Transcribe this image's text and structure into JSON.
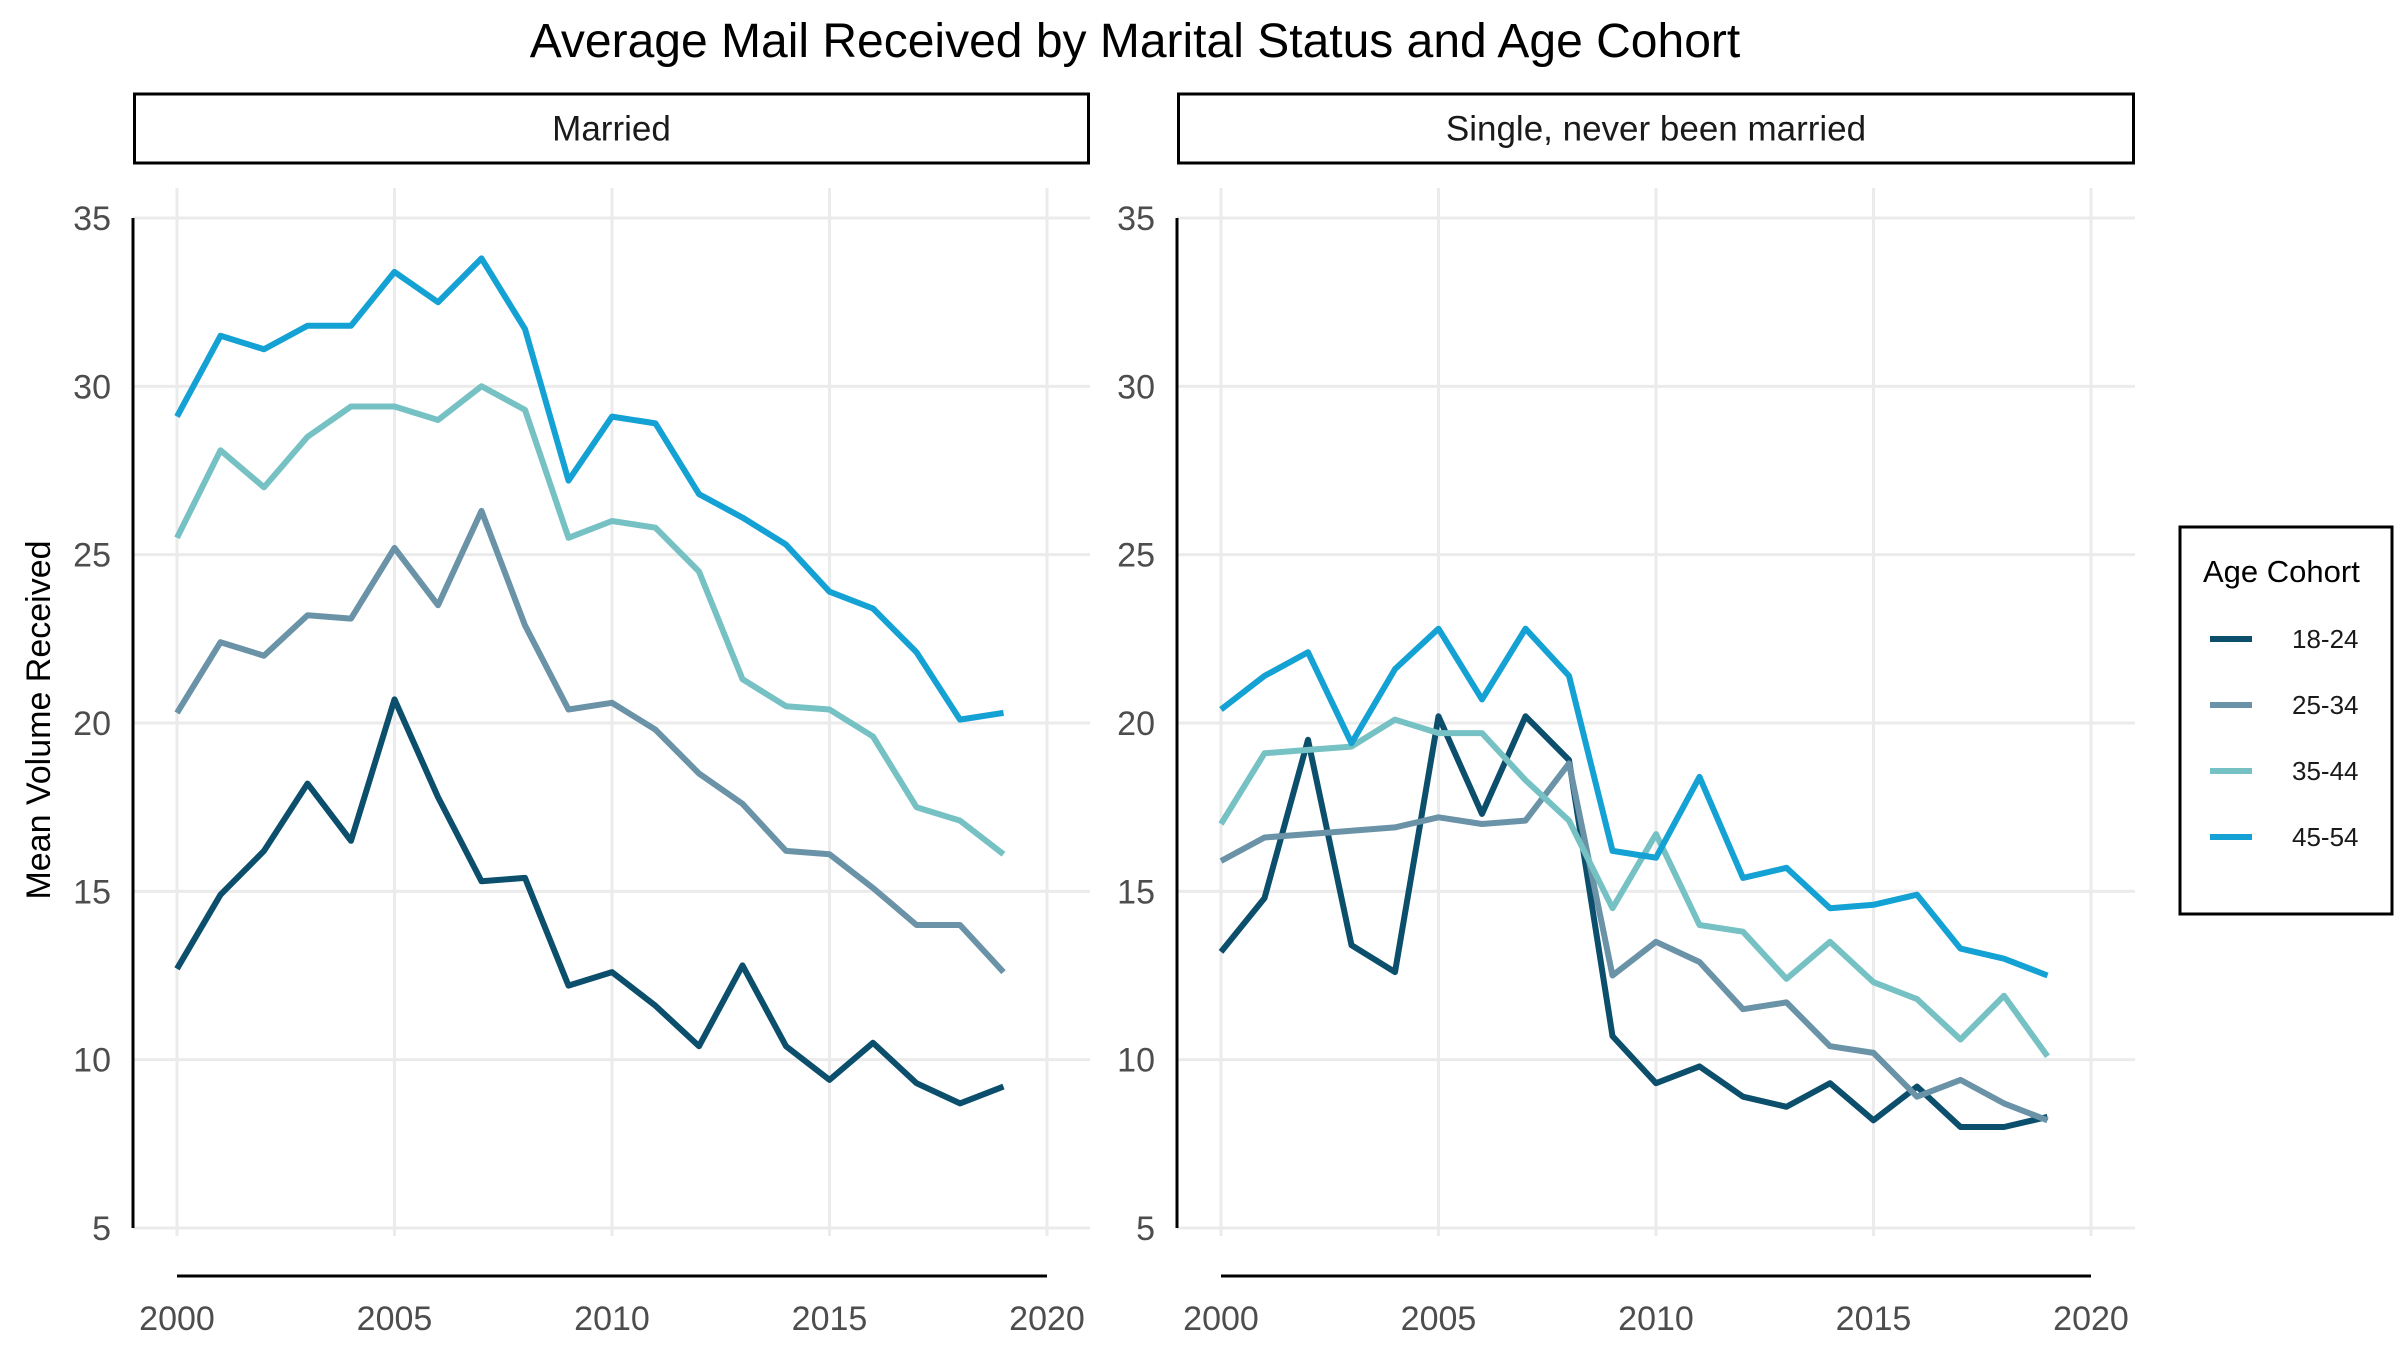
{
  "chart_data": {
    "type": "line",
    "title": "Average Mail Received by Marital Status and Age Cohort",
    "ylabel": "Mean Volume Received",
    "xlabel": "",
    "xlim": [
      2000,
      2020
    ],
    "ylim": [
      5,
      35
    ],
    "xticks": [
      2000,
      2005,
      2010,
      2015,
      2020
    ],
    "yticks": [
      5,
      10,
      15,
      20,
      25,
      30,
      35
    ],
    "x": [
      2000,
      2001,
      2002,
      2003,
      2004,
      2005,
      2006,
      2007,
      2008,
      2009,
      2010,
      2011,
      2012,
      2013,
      2014,
      2015,
      2016,
      2017,
      2018,
      2019
    ],
    "grid": true,
    "legend": {
      "title": "Age Cohort",
      "position": "right",
      "entries": [
        {
          "label": "18-24",
          "color": "#0b4f6c"
        },
        {
          "label": "25-34",
          "color": "#6a93a8"
        },
        {
          "label": "35-44",
          "color": "#76c1c4"
        },
        {
          "label": "45-54",
          "color": "#14a1d3"
        }
      ]
    },
    "panels": [
      {
        "label": "Married",
        "series": [
          {
            "name": "18-24",
            "color": "#0b4f6c",
            "values": [
              12.7,
              14.9,
              16.2,
              18.2,
              16.5,
              20.7,
              17.8,
              15.3,
              15.4,
              12.2,
              12.6,
              11.6,
              10.4,
              12.8,
              10.4,
              9.4,
              10.5,
              9.3,
              8.7,
              9.2
            ]
          },
          {
            "name": "25-34",
            "color": "#6a93a8",
            "values": [
              20.3,
              22.4,
              22.0,
              23.2,
              23.1,
              25.2,
              23.5,
              26.3,
              22.9,
              20.4,
              20.6,
              19.8,
              18.5,
              17.6,
              16.2,
              16.1,
              15.1,
              14.0,
              14.0,
              12.6
            ]
          },
          {
            "name": "35-44",
            "color": "#76c1c4",
            "values": [
              25.5,
              28.1,
              27.0,
              28.5,
              29.4,
              29.4,
              29.0,
              30.0,
              29.3,
              25.5,
              26.0,
              25.8,
              24.5,
              21.3,
              20.5,
              20.4,
              19.6,
              17.5,
              17.1,
              16.1
            ]
          },
          {
            "name": "45-54",
            "color": "#14a1d3",
            "values": [
              29.1,
              31.5,
              31.1,
              31.8,
              31.8,
              33.4,
              32.5,
              33.8,
              31.7,
              27.2,
              29.1,
              28.9,
              26.8,
              26.1,
              25.3,
              23.9,
              23.4,
              22.1,
              20.1,
              20.3
            ]
          }
        ]
      },
      {
        "label": "Single, never been married",
        "series": [
          {
            "name": "18-24",
            "color": "#0b4f6c",
            "values": [
              13.2,
              14.8,
              19.5,
              13.4,
              12.6,
              20.2,
              17.3,
              20.2,
              18.9,
              10.7,
              9.3,
              9.8,
              8.9,
              8.6,
              9.3,
              8.2,
              9.2,
              8.0,
              8.0,
              8.3
            ]
          },
          {
            "name": "25-34",
            "color": "#6a93a8",
            "values": [
              15.9,
              16.6,
              16.7,
              16.8,
              16.9,
              17.2,
              17.0,
              17.1,
              18.8,
              12.5,
              13.5,
              12.9,
              11.5,
              11.7,
              10.4,
              10.2,
              8.9,
              9.4,
              8.7,
              8.2
            ]
          },
          {
            "name": "35-44",
            "color": "#76c1c4",
            "values": [
              17.0,
              19.1,
              19.2,
              19.3,
              20.1,
              19.7,
              19.7,
              18.3,
              17.1,
              14.5,
              16.7,
              14.0,
              13.8,
              12.4,
              13.5,
              12.3,
              11.8,
              10.6,
              11.9,
              10.1
            ]
          },
          {
            "name": "45-54",
            "color": "#14a1d3",
            "values": [
              20.4,
              21.4,
              22.1,
              19.4,
              21.6,
              22.8,
              20.7,
              22.8,
              21.4,
              16.2,
              16.0,
              18.4,
              15.4,
              15.7,
              14.5,
              14.6,
              14.9,
              13.3,
              13.0,
              12.5
            ]
          }
        ]
      }
    ]
  }
}
